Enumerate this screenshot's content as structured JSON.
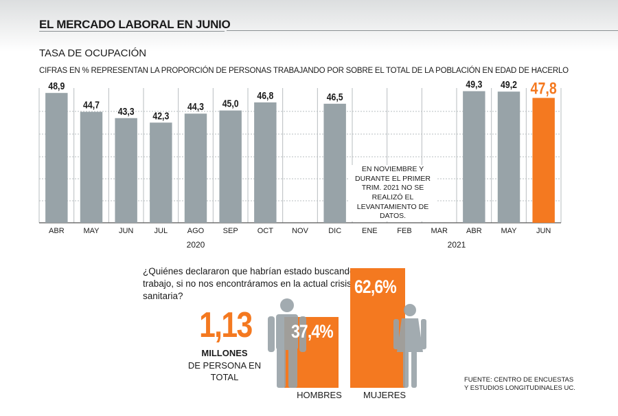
{
  "header": {
    "title": "EL MERCADO LABORAL EN JUNIO"
  },
  "chart_data": {
    "type": "bar",
    "title": "TASA DE OCUPACIÓN",
    "subtitle": "CIFRAS EN % REPRESENTAN LA PROPORCIÓN DE PERSONAS TRABAJANDO POR SOBRE EL TOTAL DE LA POBLACIÓN EN EDAD DE HACERLO",
    "categories": [
      "ABR",
      "MAY",
      "JUN",
      "JUL",
      "AGO",
      "SEP",
      "OCT",
      "NOV",
      "DIC",
      "ENE",
      "FEB",
      "MAR",
      "ABR",
      "MAY",
      "JUN"
    ],
    "values": [
      48.9,
      44.7,
      43.3,
      42.3,
      44.3,
      45.0,
      46.8,
      null,
      46.5,
      null,
      null,
      null,
      49.3,
      49.2,
      47.8
    ],
    "value_labels": [
      "48,9",
      "44,7",
      "43,3",
      "42,3",
      "44,3",
      "45,0",
      "46,8",
      "",
      "46,5",
      "",
      "",
      "",
      "49,3",
      "49,2",
      "47,8"
    ],
    "highlight_index": 14,
    "year_labels": [
      {
        "text": "2020",
        "from": 0,
        "to": 8
      },
      {
        "text": "2021",
        "from": 9,
        "to": 14
      }
    ],
    "ylim": [
      20,
      50
    ],
    "grid": true,
    "colors": {
      "bar": "#98a3a8",
      "highlight": "#f47920",
      "grid": "#b7bcbf"
    },
    "note": "EN NOVIEMBRE Y DURANTE EL PRIMER TRIM. 2021 NO SE REALIZÓ EL LEVANTAMIENTO DE DATOS."
  },
  "question": {
    "text": "¿Quiénes declararon que habrían estado buscando trabajo, si no nos encontráramos en la actual crisis sanitaria?",
    "total_value": "1,13",
    "total_unit": "MILLONES",
    "total_caption": "DE PERSONA EN TOTAL",
    "men": {
      "label": "HOMBRES",
      "percent": "37,4%",
      "value": 37.4
    },
    "women": {
      "label": "MUJERES",
      "percent": "62,6%",
      "value": 62.6
    }
  },
  "source": {
    "line1": "FUENTE: CENTRO DE ENCUESTAS",
    "line2": "Y ESTUDIOS LONGITUDINALES UC."
  }
}
